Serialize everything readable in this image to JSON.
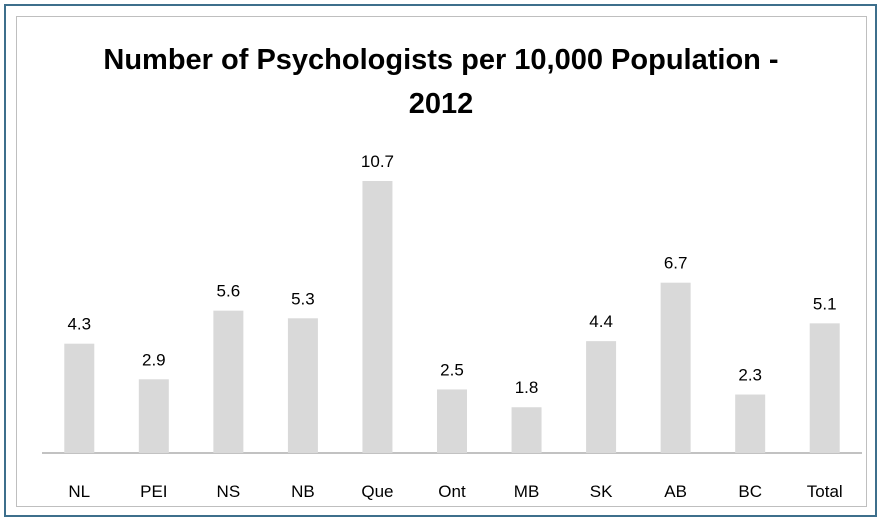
{
  "chart_data": {
    "type": "bar",
    "title": "Number of Psychologists per 10,000 Population - 2012",
    "categories": [
      "NL",
      "PEI",
      "NS",
      "NB",
      "Que",
      "Ont",
      "MB",
      "SK",
      "AB",
      "BC",
      "Total"
    ],
    "values": [
      4.3,
      2.9,
      5.6,
      5.3,
      10.7,
      2.5,
      1.8,
      4.4,
      6.7,
      2.3,
      5.1
    ],
    "value_labels": [
      "4.3",
      "2.9",
      "5.6",
      "5.3",
      "10.7",
      "2.5",
      "1.8",
      "4.4",
      "6.7",
      "2.3",
      "5.1"
    ],
    "color": "#d9d9d9"
  }
}
